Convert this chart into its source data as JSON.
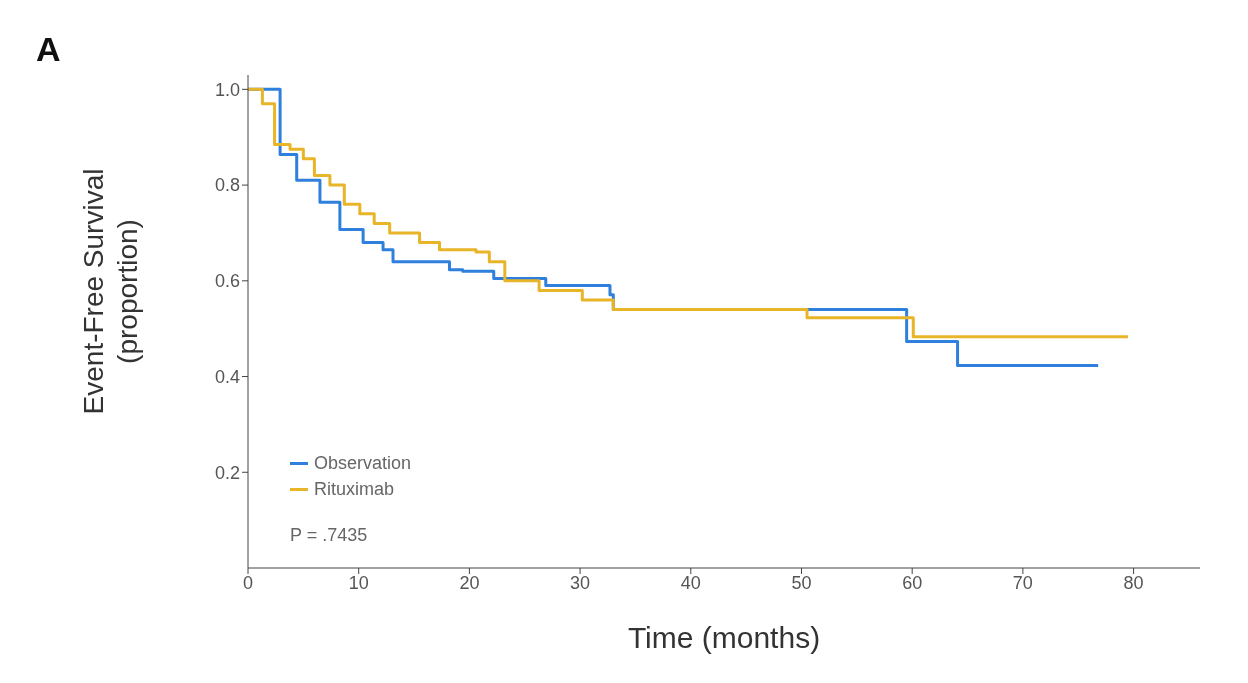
{
  "chart_data": {
    "type": "step",
    "title": "A",
    "xlabel": "Time (months)",
    "ylabel": "Event-Free Survival\n(proportion)",
    "xlim": [
      0,
      86
    ],
    "xticks": [
      0,
      10,
      20,
      30,
      40,
      50,
      60,
      70,
      80
    ],
    "ylim": [
      0,
      1.03
    ],
    "yticks": [
      {
        "value": 0.2,
        "label": "0.2"
      },
      {
        "value": 0.4,
        "label": "0.4"
      },
      {
        "value": 0.6,
        "label": "0.6"
      },
      {
        "value": 0.8,
        "label": "0.8"
      },
      {
        "value": 1,
        "label": "1.0"
      }
    ],
    "series": [
      {
        "name": "Observation",
        "color": "#2f7fdc",
        "x": [
          0,
          2.9,
          4.4,
          6.5,
          8.3,
          10.4,
          12.2,
          13.1,
          18.2,
          19.4,
          22.2,
          26.9,
          32.7,
          33,
          59.5,
          64.1,
          76.8
        ],
        "values": [
          1.0,
          0.864,
          0.81,
          0.764,
          0.707,
          0.68,
          0.665,
          0.64,
          0.623,
          0.62,
          0.605,
          0.59,
          0.571,
          0.54,
          0.473,
          0.423,
          0.423
        ]
      },
      {
        "name": "Rituximab",
        "color": "#e8b428",
        "x": [
          0,
          1.3,
          2.4,
          3.8,
          5,
          6,
          7.4,
          8.7,
          10.1,
          11.4,
          12.8,
          15.5,
          17.3,
          20.6,
          21.8,
          23.2,
          26.3,
          30.2,
          33,
          50.5,
          60.1,
          79.5
        ],
        "values": [
          1.0,
          0.97,
          0.885,
          0.875,
          0.855,
          0.82,
          0.8,
          0.76,
          0.74,
          0.72,
          0.7,
          0.68,
          0.665,
          0.66,
          0.64,
          0.6,
          0.58,
          0.56,
          0.54,
          0.523,
          0.483,
          0.483
        ]
      }
    ],
    "annotations": [
      "P = .7435"
    ],
    "legend": "bottom left",
    "marker": "none",
    "line_style": "solid"
  }
}
